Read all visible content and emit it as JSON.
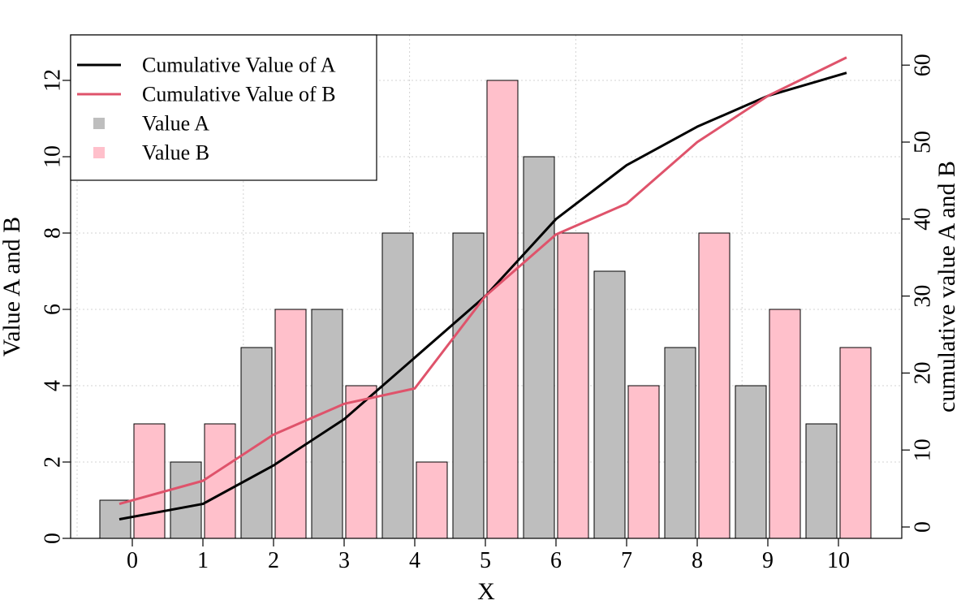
{
  "chart_data": {
    "type": "bar",
    "categories": [
      "0",
      "1",
      "2",
      "3",
      "4",
      "5",
      "6",
      "7",
      "8",
      "9",
      "10"
    ],
    "series": [
      {
        "name": "Value A",
        "type": "bar",
        "axis": "left",
        "color": "#bebebe",
        "values": [
          1,
          2,
          5,
          6,
          8,
          8,
          10,
          7,
          5,
          4,
          3
        ]
      },
      {
        "name": "Value B",
        "type": "bar",
        "axis": "left",
        "color": "#ffc0cb",
        "values": [
          3,
          3,
          6,
          4,
          2,
          12,
          8,
          4,
          8,
          6,
          5
        ]
      },
      {
        "name": "Cumulative Value of A",
        "type": "line",
        "axis": "right",
        "color": "#000000",
        "values": [
          1,
          3,
          8,
          14,
          22,
          30,
          40,
          47,
          52,
          56,
          59
        ]
      },
      {
        "name": "Cumulative Value of B",
        "type": "line",
        "axis": "right",
        "color": "#df536b",
        "values": [
          3,
          6,
          12,
          16,
          18,
          30,
          38,
          42,
          50,
          56,
          61
        ]
      }
    ],
    "xlabel": "X",
    "ylabel": "Value A and B",
    "y2label": "cumulative value A and B",
    "ylim": [
      0,
      13
    ],
    "y2lim": [
      0,
      62
    ],
    "yticks": [
      0,
      2,
      4,
      6,
      8,
      10,
      12
    ],
    "y2ticks": [
      0,
      10,
      20,
      30,
      40,
      50,
      60
    ],
    "grid": true,
    "legend_position": "top-left",
    "legend": [
      {
        "label": "Cumulative Value of A",
        "kind": "line",
        "color": "#000000"
      },
      {
        "label": "Cumulative Value of B",
        "kind": "line",
        "color": "#df536b"
      },
      {
        "label": "Value A",
        "kind": "square",
        "color": "#bebebe"
      },
      {
        "label": "Value B",
        "kind": "square",
        "color": "#ffc0cb"
      }
    ]
  }
}
